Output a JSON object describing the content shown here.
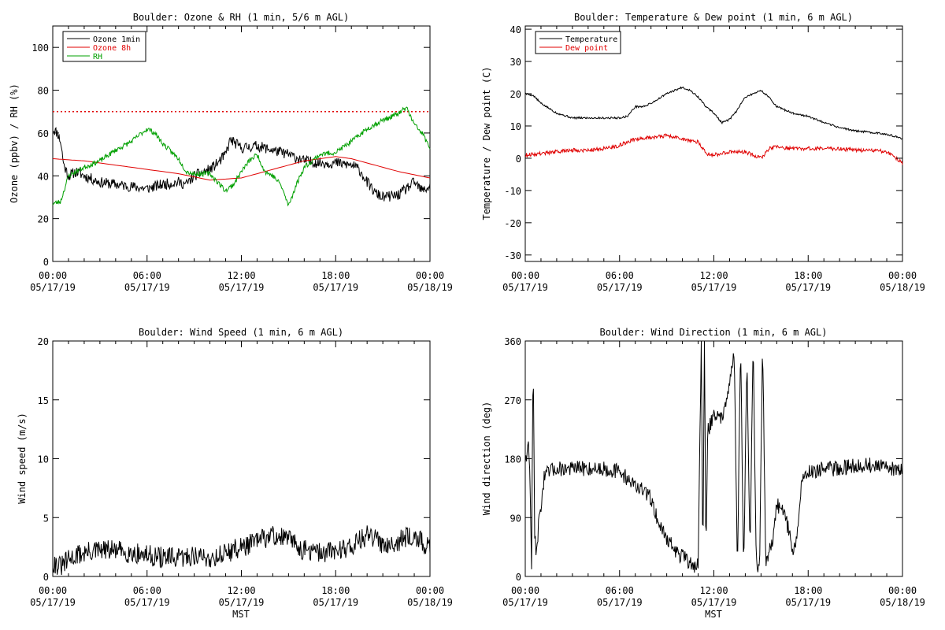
{
  "chart_data": [
    {
      "type": "line",
      "title": "Boulder: Ozone & RH (1 min, 5/6 m AGL)",
      "xlabel": "",
      "ylabel": "Ozone (ppbv) / RH (%)",
      "ylim": [
        0,
        110
      ],
      "yticks": [
        0,
        20,
        40,
        60,
        80,
        100
      ],
      "xlim": [
        0,
        24
      ],
      "xticks": [
        {
          "hour": 0,
          "time": "00:00",
          "date": "05/17/19"
        },
        {
          "hour": 6,
          "time": "06:00",
          "date": "05/17/19"
        },
        {
          "hour": 12,
          "time": "12:00",
          "date": "05/17/19"
        },
        {
          "hour": 18,
          "time": "18:00",
          "date": "05/17/19"
        },
        {
          "hour": 24,
          "time": "00:00",
          "date": "05/18/19"
        }
      ],
      "legend": "top-left",
      "reference_line": {
        "y": 70,
        "color": "#e00000",
        "style": "dotted"
      },
      "series": [
        {
          "name": "Ozone 1min",
          "color": "#000000",
          "noise": 2.5,
          "seed": 11,
          "x": [
            0,
            0.3,
            0.5,
            0.7,
            1.0,
            1.5,
            2.0,
            3.0,
            4.0,
            5.0,
            6.0,
            7.0,
            8.0,
            8.5,
            9.0,
            10.0,
            10.5,
            11.0,
            11.3,
            12.0,
            13.0,
            14.0,
            15.0,
            16.0,
            17.0,
            18.0,
            19.0,
            19.5,
            20.0,
            20.5,
            21.0,
            22.0,
            22.5,
            23.0,
            23.5,
            24.0
          ],
          "y": [
            62,
            60,
            56,
            45,
            40,
            42,
            40,
            37,
            36,
            35,
            34,
            36,
            37,
            36,
            40,
            43,
            46,
            50,
            57,
            53,
            54,
            52,
            50,
            47,
            46,
            46,
            45,
            43,
            37,
            32,
            30,
            31,
            34,
            37,
            33,
            35
          ]
        },
        {
          "name": "Ozone 8h",
          "color": "#e00000",
          "noise": 0,
          "seed": 1,
          "x": [
            0,
            2,
            4,
            6,
            8,
            10,
            12,
            14,
            16,
            18,
            19,
            20,
            22,
            24
          ],
          "y": [
            48,
            47,
            45,
            43,
            41,
            38,
            39,
            43,
            47,
            49,
            48,
            46,
            42,
            39
          ]
        },
        {
          "name": "RH",
          "color": "#00a000",
          "noise": 1.2,
          "seed": 23,
          "x": [
            0,
            0.5,
            1.0,
            1.5,
            2.0,
            3.0,
            4.0,
            5.0,
            6.0,
            6.5,
            7.0,
            8.0,
            8.5,
            9.0,
            10.0,
            10.5,
            11.0,
            11.5,
            12.0,
            12.5,
            13.0,
            13.5,
            14.0,
            14.5,
            15.0,
            15.5,
            16.0,
            17.0,
            18.0,
            19.0,
            20.0,
            21.0,
            22.0,
            22.5,
            23.0,
            23.5,
            24.0
          ],
          "y": [
            27,
            28,
            40,
            42,
            44,
            47,
            52,
            56,
            62,
            60,
            55,
            48,
            42,
            41,
            41,
            37,
            33,
            36,
            42,
            47,
            50,
            42,
            40,
            36,
            26,
            36,
            44,
            50,
            51,
            56,
            62,
            66,
            69,
            72,
            64,
            60,
            53
          ]
        }
      ]
    },
    {
      "type": "line",
      "title": "Boulder: Temperature & Dew point (1 min, 6 m AGL)",
      "xlabel": "",
      "ylabel": "Temperature / Dew point (C)",
      "ylim": [
        -32,
        41
      ],
      "yticks": [
        -30,
        -20,
        -10,
        0,
        10,
        20,
        30,
        40
      ],
      "xlim": [
        0,
        24
      ],
      "xticks": [
        {
          "hour": 0,
          "time": "00:00",
          "date": "05/17/19"
        },
        {
          "hour": 6,
          "time": "06:00",
          "date": "05/17/19"
        },
        {
          "hour": 12,
          "time": "12:00",
          "date": "05/17/19"
        },
        {
          "hour": 18,
          "time": "18:00",
          "date": "05/17/19"
        },
        {
          "hour": 24,
          "time": "00:00",
          "date": "05/18/19"
        }
      ],
      "legend": "top-left",
      "series": [
        {
          "name": "Temperature",
          "color": "#000000",
          "noise": 0.3,
          "seed": 5,
          "x": [
            0,
            0.5,
            1.0,
            2.0,
            3.0,
            4.0,
            5.0,
            6.0,
            6.5,
            7.0,
            7.5,
            8.0,
            9.0,
            10.0,
            10.5,
            11.0,
            11.5,
            12.0,
            12.5,
            13.0,
            13.5,
            14.0,
            14.5,
            15.0,
            15.5,
            16.0,
            17.0,
            18.0,
            19.0,
            20.0,
            21.0,
            22.0,
            23.0,
            24.0
          ],
          "y": [
            20,
            19.5,
            17,
            14,
            12.5,
            12.5,
            12.5,
            12.5,
            13,
            16,
            16,
            17,
            20,
            22,
            21,
            19,
            16,
            14,
            11,
            12,
            15,
            19,
            20,
            21,
            19,
            16,
            14,
            13,
            11,
            9.5,
            8.5,
            8,
            7.5,
            6
          ]
        },
        {
          "name": "Dew point",
          "color": "#e00000",
          "noise": 0.6,
          "seed": 9,
          "x": [
            0,
            1.0,
            2.0,
            3.0,
            4.0,
            5.0,
            6.0,
            7.0,
            8.0,
            9.0,
            10.0,
            11.0,
            11.5,
            12.0,
            13.0,
            14.0,
            15.0,
            15.5,
            16.0,
            17.0,
            18.0,
            19.0,
            20.0,
            21.0,
            22.0,
            23.0,
            24.0
          ],
          "y": [
            1,
            1.5,
            2,
            2.5,
            2.5,
            3,
            4,
            6,
            6.5,
            7,
            6,
            5,
            1.5,
            1,
            2,
            2,
            0,
            3,
            3.5,
            3,
            3,
            3,
            3,
            2.5,
            2.5,
            2,
            -1.5
          ]
        }
      ]
    },
    {
      "type": "line",
      "title": "Boulder: Wind Speed (1 min, 6 m AGL)",
      "xlabel": "MST",
      "ylabel": "Wind speed (m/s)",
      "ylim": [
        0,
        20
      ],
      "yticks": [
        0,
        5,
        10,
        15,
        20
      ],
      "xlim": [
        0,
        24
      ],
      "xticks": [
        {
          "hour": 0,
          "time": "00:00",
          "date": "05/17/19"
        },
        {
          "hour": 6,
          "time": "06:00",
          "date": "05/17/19"
        },
        {
          "hour": 12,
          "time": "12:00",
          "date": "05/17/19"
        },
        {
          "hour": 18,
          "time": "18:00",
          "date": "05/17/19"
        },
        {
          "hour": 24,
          "time": "00:00",
          "date": "05/18/19"
        }
      ],
      "series": [
        {
          "name": "",
          "color": "#000000",
          "noise": 0.9,
          "seed": 31,
          "clip_min": 0,
          "x": [
            0,
            0.5,
            1.0,
            1.5,
            2.0,
            3.0,
            4.0,
            5.0,
            6.0,
            7.0,
            8.0,
            9.0,
            10.0,
            11.0,
            12.0,
            13.0,
            14.0,
            15.0,
            16.0,
            17.0,
            18.0,
            19.0,
            20.0,
            21.0,
            22.0,
            23.0,
            23.5,
            24.0
          ],
          "y": [
            1.2,
            0.8,
            1.4,
            1.8,
            2.0,
            2.2,
            2.2,
            2.0,
            1.8,
            1.6,
            1.5,
            1.8,
            1.5,
            2.0,
            2.5,
            3.0,
            3.5,
            3.2,
            2.2,
            2.0,
            2.2,
            2.6,
            3.5,
            2.8,
            3.0,
            3.6,
            2.8,
            2.3
          ]
        }
      ]
    },
    {
      "type": "line",
      "title": "Boulder: Wind Direction (1 min, 6 m AGL)",
      "xlabel": "MST",
      "ylabel": "Wind direction (deg)",
      "ylim": [
        0,
        360
      ],
      "yticks": [
        0,
        90,
        180,
        270,
        360
      ],
      "xlim": [
        0,
        24
      ],
      "xticks": [
        {
          "hour": 0,
          "time": "00:00",
          "date": "05/17/19"
        },
        {
          "hour": 6,
          "time": "06:00",
          "date": "05/17/19"
        },
        {
          "hour": 12,
          "time": "12:00",
          "date": "05/17/19"
        },
        {
          "hour": 18,
          "time": "18:00",
          "date": "05/17/19"
        },
        {
          "hour": 24,
          "time": "00:00",
          "date": "05/18/19"
        }
      ],
      "series": [
        {
          "name": "",
          "color": "#000000",
          "noise": 12,
          "seed": 47,
          "clip_min": 0,
          "clip_max": 360,
          "x": [
            0,
            0.2,
            0.3,
            0.4,
            0.5,
            0.6,
            0.7,
            0.9,
            1.2,
            1.5,
            2.0,
            3.0,
            4.0,
            5.0,
            6.0,
            7.0,
            7.5,
            8.0,
            8.5,
            9.0,
            9.5,
            10.0,
            10.5,
            11.0,
            11.2,
            11.3,
            11.4,
            11.5,
            11.6,
            12.0,
            12.5,
            13.0,
            13.3,
            13.5,
            13.7,
            13.9,
            14.1,
            14.3,
            14.5,
            14.7,
            14.9,
            15.1,
            15.3,
            15.5,
            15.8,
            16.0,
            16.5,
            17.0,
            17.3,
            17.6,
            18.0,
            19.0,
            20.0,
            21.0,
            22.0,
            23.0,
            24.0
          ],
          "y": [
            180,
            200,
            150,
            20,
            340,
            60,
            40,
            90,
            150,
            160,
            165,
            165,
            165,
            165,
            160,
            140,
            130,
            120,
            80,
            60,
            40,
            30,
            20,
            15,
            360,
            10,
            360,
            20,
            220,
            250,
            240,
            300,
            340,
            10,
            360,
            0,
            340,
            30,
            360,
            20,
            5,
            360,
            20,
            40,
            60,
            110,
            100,
            40,
            60,
            150,
            160,
            165,
            165,
            170,
            170,
            165,
            165
          ]
        }
      ]
    }
  ]
}
